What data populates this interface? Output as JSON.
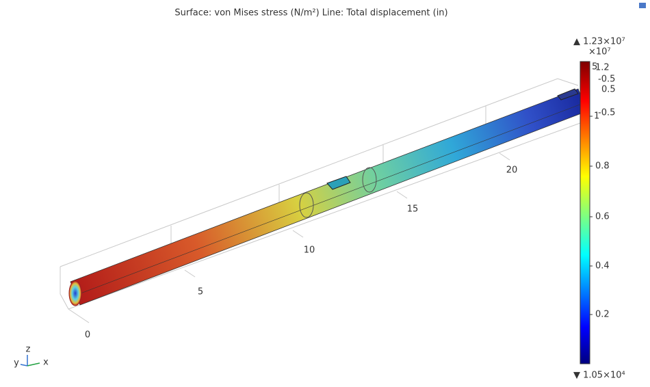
{
  "title": "Surface: von Mises stress (N/m²)  Line: Total displacement (in)",
  "colorbar": {
    "max_label": "▲ 1.23×10⁷",
    "multiplier": "×10⁷",
    "min_label": "▼ 1.05×10⁴",
    "ticks": [
      "1",
      "0.8",
      "0.6",
      "0.4",
      "0.2"
    ],
    "overlap_labels": [
      "1.2",
      "-0.5",
      "0.5",
      "-0.5",
      "5"
    ]
  },
  "axis": {
    "labels": [
      "0",
      "5",
      "10",
      "15",
      "20"
    ]
  },
  "triad": {
    "y": "y",
    "z": "z",
    "x": "x"
  }
}
